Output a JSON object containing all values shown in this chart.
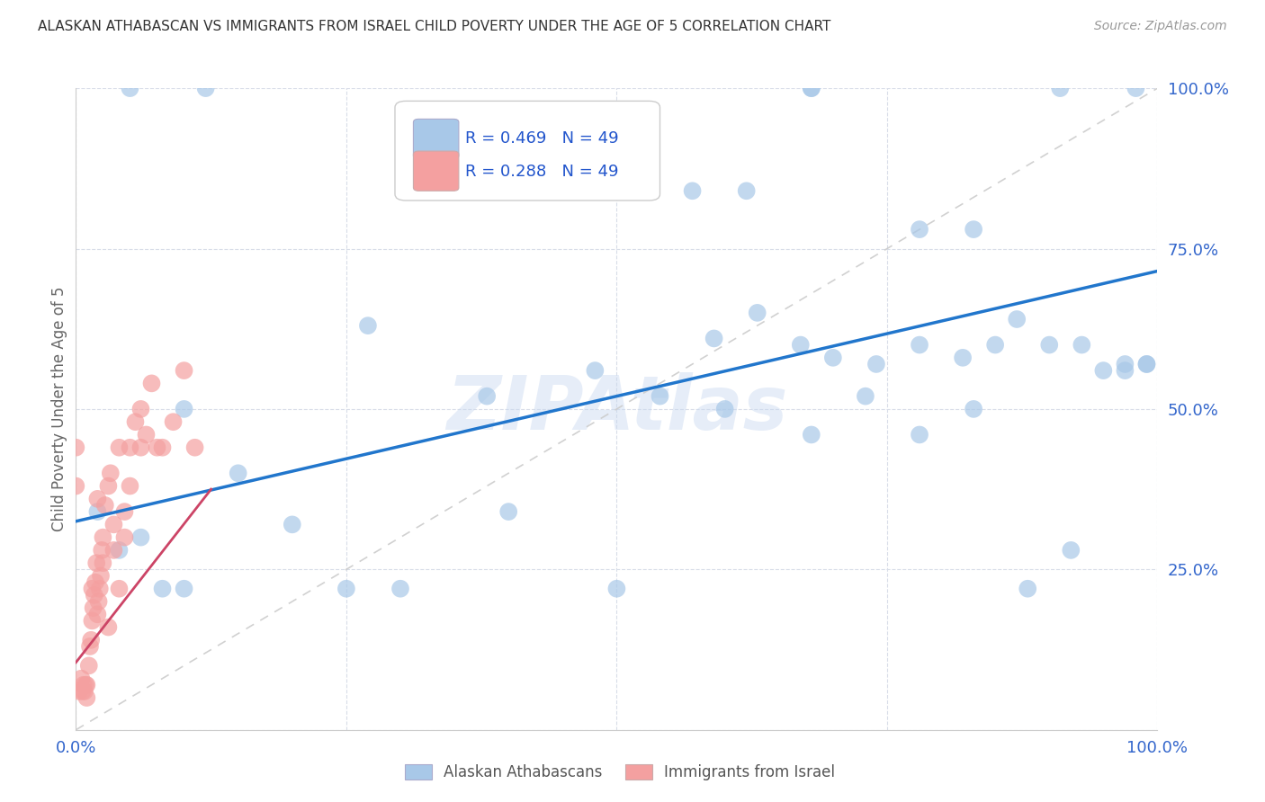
{
  "title": "ALASKAN ATHABASCAN VS IMMIGRANTS FROM ISRAEL CHILD POVERTY UNDER THE AGE OF 5 CORRELATION CHART",
  "source": "Source: ZipAtlas.com",
  "ylabel": "Child Poverty Under the Age of 5",
  "xlim": [
    0,
    1
  ],
  "ylim": [
    0,
    1
  ],
  "xticks": [
    0.0,
    0.25,
    0.5,
    0.75,
    1.0
  ],
  "xticklabels": [
    "0.0%",
    "",
    "",
    "",
    "100.0%"
  ],
  "yticks": [
    0.0,
    0.25,
    0.5,
    0.75,
    1.0
  ],
  "yticklabels_right": [
    "",
    "25.0%",
    "50.0%",
    "75.0%",
    "100.0%"
  ],
  "blue_color": "#a8c8e8",
  "pink_color": "#f4a0a0",
  "blue_line_color": "#2176cc",
  "pink_line_color": "#cc4466",
  "diag_color": "#cccccc",
  "legend_blue_label": "Alaskan Athabascans",
  "legend_pink_label": "Immigrants from Israel",
  "R_blue": 0.469,
  "N_blue": 49,
  "R_pink": 0.288,
  "N_pink": 49,
  "blue_trend_x0": 0.0,
  "blue_trend_y0": 0.325,
  "blue_trend_x1": 1.0,
  "blue_trend_y1": 0.715,
  "pink_trend_x0": 0.0,
  "pink_trend_y0": 0.105,
  "pink_trend_x1": 0.125,
  "pink_trend_y1": 0.375,
  "blue_scatter_x": [
    0.05,
    0.12,
    0.57,
    0.62,
    0.68,
    0.68,
    0.78,
    0.83,
    0.91,
    0.98,
    0.27,
    0.38,
    0.48,
    0.54,
    0.59,
    0.63,
    0.67,
    0.7,
    0.74,
    0.78,
    0.82,
    0.85,
    0.87,
    0.9,
    0.93,
    0.97,
    0.99,
    0.02,
    0.04,
    0.06,
    0.08,
    0.1,
    0.15,
    0.2,
    0.25,
    0.3,
    0.4,
    0.5,
    0.6,
    0.68,
    0.73,
    0.78,
    0.83,
    0.88,
    0.92,
    0.95,
    0.97,
    0.99,
    0.1
  ],
  "blue_scatter_y": [
    1.0,
    1.0,
    0.84,
    0.84,
    1.0,
    1.0,
    0.78,
    0.78,
    1.0,
    1.0,
    0.63,
    0.52,
    0.56,
    0.52,
    0.61,
    0.65,
    0.6,
    0.58,
    0.57,
    0.6,
    0.58,
    0.6,
    0.64,
    0.6,
    0.6,
    0.57,
    0.57,
    0.34,
    0.28,
    0.3,
    0.22,
    0.22,
    0.4,
    0.32,
    0.22,
    0.22,
    0.34,
    0.22,
    0.5,
    0.46,
    0.52,
    0.46,
    0.5,
    0.22,
    0.28,
    0.56,
    0.56,
    0.57,
    0.5
  ],
  "pink_scatter_x": [
    0.0,
    0.0,
    0.003,
    0.005,
    0.006,
    0.007,
    0.008,
    0.009,
    0.01,
    0.01,
    0.012,
    0.013,
    0.014,
    0.015,
    0.016,
    0.017,
    0.018,
    0.019,
    0.02,
    0.021,
    0.022,
    0.023,
    0.024,
    0.025,
    0.027,
    0.03,
    0.032,
    0.035,
    0.04,
    0.045,
    0.05,
    0.055,
    0.06,
    0.065,
    0.07,
    0.075,
    0.08,
    0.09,
    0.1,
    0.11,
    0.02,
    0.03,
    0.04,
    0.05,
    0.015,
    0.025,
    0.035,
    0.045,
    0.06
  ],
  "pink_scatter_y": [
    0.44,
    0.38,
    0.06,
    0.08,
    0.06,
    0.07,
    0.06,
    0.07,
    0.05,
    0.07,
    0.1,
    0.13,
    0.14,
    0.17,
    0.19,
    0.21,
    0.23,
    0.26,
    0.18,
    0.2,
    0.22,
    0.24,
    0.28,
    0.3,
    0.35,
    0.38,
    0.4,
    0.28,
    0.44,
    0.3,
    0.44,
    0.48,
    0.5,
    0.46,
    0.54,
    0.44,
    0.44,
    0.48,
    0.56,
    0.44,
    0.36,
    0.16,
    0.22,
    0.38,
    0.22,
    0.26,
    0.32,
    0.34,
    0.44
  ],
  "watermark": "ZIPAtlas",
  "background_color": "#ffffff",
  "grid_color": "#d8dde8"
}
